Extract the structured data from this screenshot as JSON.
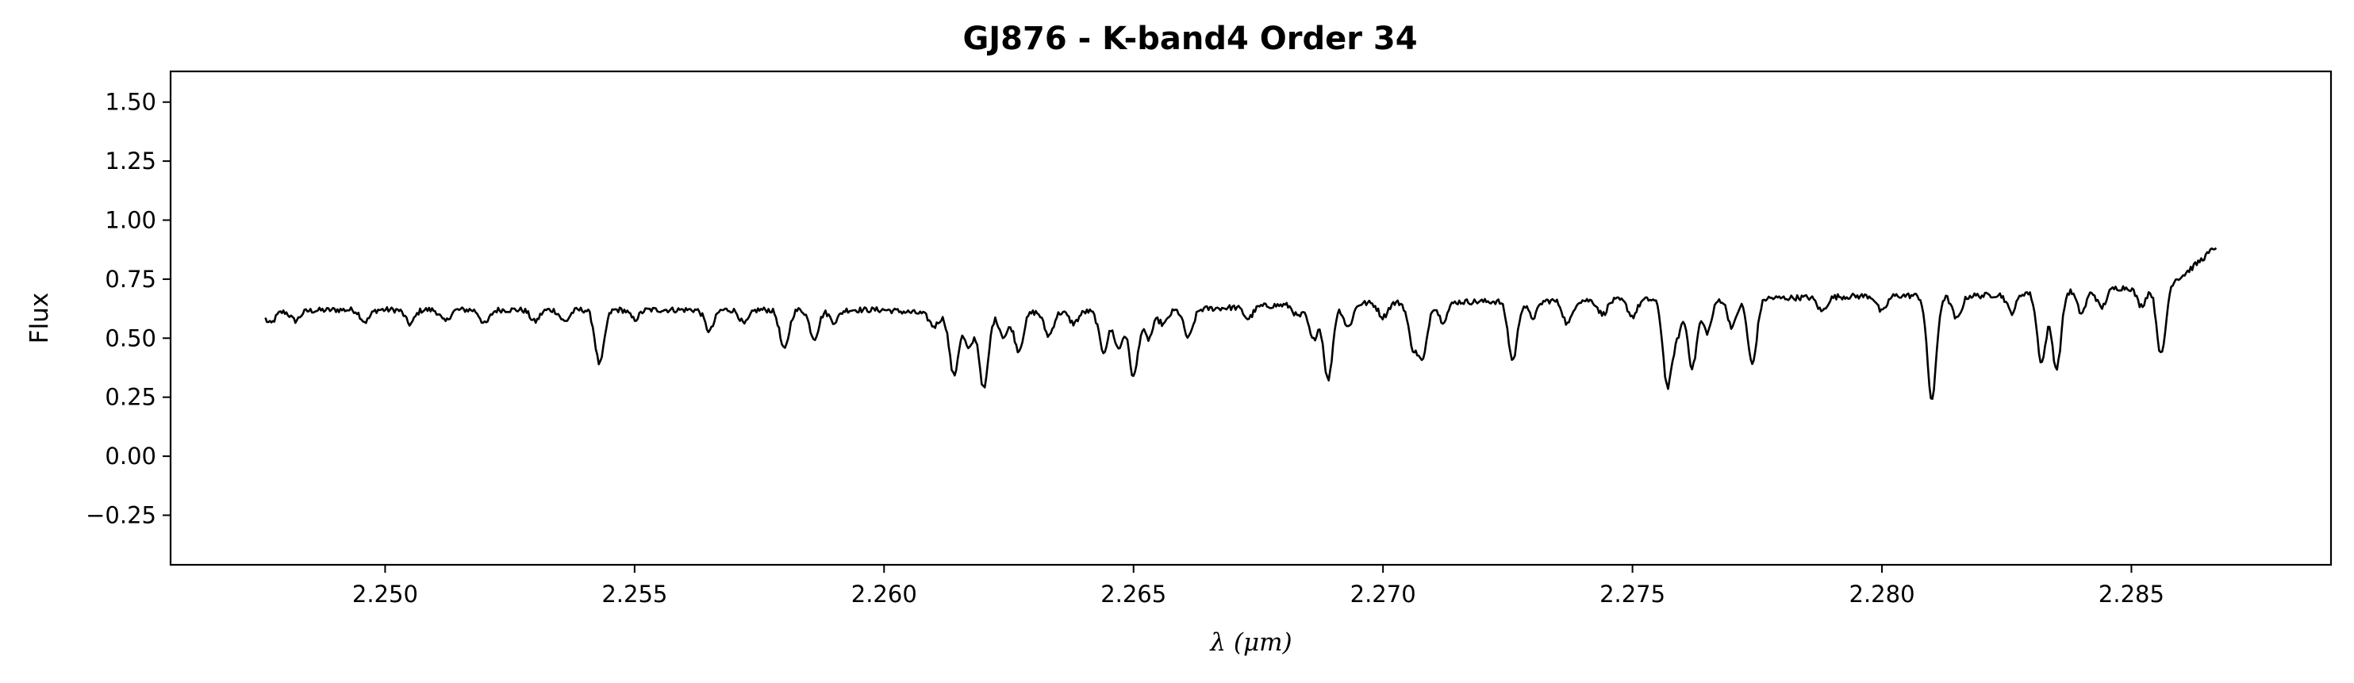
{
  "chart_data": {
    "type": "line",
    "title": "GJ876 - K-band4 Order 34",
    "xlabel": "λ (μm)",
    "ylabel": "Flux",
    "xlim": [
      2.2457,
      2.289
    ],
    "ylim": [
      -0.46,
      1.63
    ],
    "xticks": [
      2.25,
      2.255,
      2.26,
      2.265,
      2.27,
      2.275,
      2.28,
      2.285
    ],
    "xtick_labels": [
      "2.250",
      "2.255",
      "2.260",
      "2.265",
      "2.270",
      "2.275",
      "2.280",
      "2.285"
    ],
    "yticks": [
      -0.25,
      0.0,
      0.25,
      0.5,
      0.75,
      1.0,
      1.25,
      1.5
    ],
    "ytick_labels": [
      "−0.25",
      "0.00",
      "0.25",
      "0.50",
      "0.75",
      "1.00",
      "1.25",
      "1.50"
    ],
    "grid": false,
    "line_color": "#000000",
    "series": [
      {
        "x_range": [
          2.2476,
          2.2867
        ],
        "continuum": [
          [
            2.2476,
            0.61
          ],
          [
            2.249,
            0.62
          ],
          [
            2.252,
            0.62
          ],
          [
            2.256,
            0.62
          ],
          [
            2.26,
            0.62
          ],
          [
            2.261,
            0.6
          ],
          [
            2.263,
            0.61
          ],
          [
            2.266,
            0.62
          ],
          [
            2.268,
            0.64
          ],
          [
            2.27,
            0.65
          ],
          [
            2.274,
            0.66
          ],
          [
            2.278,
            0.67
          ],
          [
            2.28,
            0.68
          ],
          [
            2.282,
            0.68
          ],
          [
            2.2833,
            0.7
          ],
          [
            2.2845,
            0.71
          ],
          [
            2.2855,
            0.72
          ],
          [
            2.286,
            0.76
          ],
          [
            2.2865,
            0.85
          ],
          [
            2.2867,
            0.89
          ]
        ],
        "absorption_lines": [
          [
            2.2477,
            0.05
          ],
          [
            2.2482,
            0.04
          ],
          [
            2.2496,
            0.05
          ],
          [
            2.2505,
            0.06
          ],
          [
            2.2512,
            0.05
          ],
          [
            2.252,
            0.06
          ],
          [
            2.253,
            0.05
          ],
          [
            2.2536,
            0.05
          ],
          [
            2.2543,
            0.23
          ],
          [
            2.255,
            0.04
          ],
          [
            2.2565,
            0.09
          ],
          [
            2.2572,
            0.06
          ],
          [
            2.258,
            0.17
          ],
          [
            2.2586,
            0.12
          ],
          [
            2.259,
            0.05
          ],
          [
            2.261,
            0.05
          ],
          [
            2.2614,
            0.26
          ],
          [
            2.2617,
            0.15
          ],
          [
            2.262,
            0.32
          ],
          [
            2.2624,
            0.1
          ],
          [
            2.2627,
            0.16
          ],
          [
            2.2633,
            0.1
          ],
          [
            2.2638,
            0.05
          ],
          [
            2.2644,
            0.17
          ],
          [
            2.2647,
            0.16
          ],
          [
            2.265,
            0.28
          ],
          [
            2.2653,
            0.12
          ],
          [
            2.2656,
            0.06
          ],
          [
            2.2661,
            0.12
          ],
          [
            2.2673,
            0.05
          ],
          [
            2.2683,
            0.05
          ],
          [
            2.2686,
            0.15
          ],
          [
            2.2689,
            0.32
          ],
          [
            2.2693,
            0.1
          ],
          [
            2.27,
            0.06
          ],
          [
            2.2706,
            0.18
          ],
          [
            2.2708,
            0.23
          ],
          [
            2.2712,
            0.08
          ],
          [
            2.2726,
            0.25
          ],
          [
            2.273,
            0.07
          ],
          [
            2.2737,
            0.1
          ],
          [
            2.2744,
            0.06
          ],
          [
            2.275,
            0.07
          ],
          [
            2.2757,
            0.36
          ],
          [
            2.2759,
            0.14
          ],
          [
            2.2762,
            0.29
          ],
          [
            2.2765,
            0.14
          ],
          [
            2.277,
            0.12
          ],
          [
            2.2774,
            0.28
          ],
          [
            2.2788,
            0.06
          ],
          [
            2.28,
            0.07
          ],
          [
            2.281,
            0.44
          ],
          [
            2.2815,
            0.1
          ],
          [
            2.2826,
            0.08
          ],
          [
            2.2832,
            0.3
          ],
          [
            2.2835,
            0.33
          ],
          [
            2.284,
            0.1
          ],
          [
            2.2844,
            0.08
          ],
          [
            2.2852,
            0.08
          ],
          [
            2.2856,
            0.3
          ]
        ],
        "line_width_um": 9e-05,
        "n_points": 1300,
        "noise_amplitude": 0.012
      }
    ]
  }
}
